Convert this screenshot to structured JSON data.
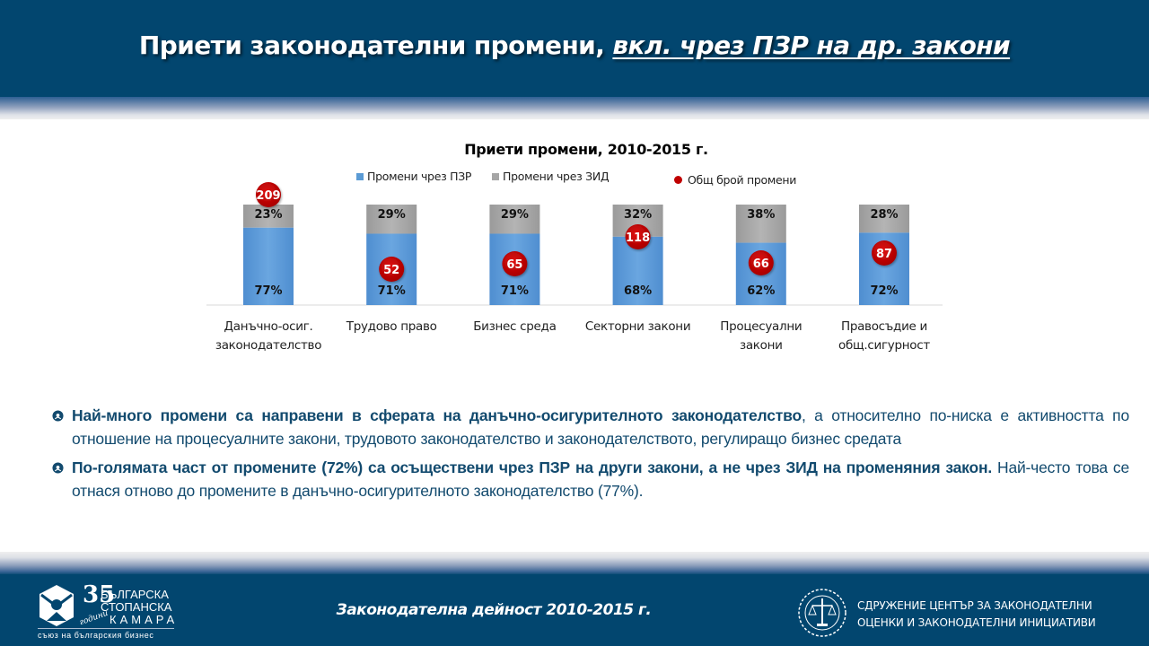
{
  "header": {
    "title_main": "Приети законодателни промени, ",
    "title_sub": "вкл. чрез ПЗР на др. закони"
  },
  "colors": {
    "navy": "#02466f",
    "pzr_blue": "#5b9bd5",
    "zid_gray": "#a6a6a6",
    "total_red": "#c00000",
    "bullet_text": "#124a6e"
  },
  "chart_data": {
    "type": "bar",
    "stacked": true,
    "percent_stacked": true,
    "title": "Приети промени, 2010-2015 г.",
    "xlabel": "",
    "ylabel": "",
    "ylim": [
      0,
      100
    ],
    "grid": false,
    "legend_position": "top",
    "categories": [
      [
        "Данъчно-осиг.",
        "законодателство"
      ],
      [
        "Трудово право"
      ],
      [
        "Бизнес среда"
      ],
      [
        "Секторни закони"
      ],
      [
        "Процесуални",
        "закони"
      ],
      [
        "Правосъдие и",
        "общ.сигурност"
      ]
    ],
    "series": [
      {
        "name": "Промени чрез ПЗР",
        "color": "#5b9bd5",
        "values": [
          77,
          71,
          71,
          68,
          62,
          72
        ],
        "labels": [
          "77%",
          "71%",
          "71%",
          "68%",
          "62%",
          "72%"
        ]
      },
      {
        "name": "Промени чрез ЗИД",
        "color": "#a6a6a6",
        "values": [
          23,
          29,
          29,
          32,
          38,
          28
        ],
        "labels": [
          "23%",
          "29%",
          "29%",
          "32%",
          "38%",
          "28%"
        ]
      },
      {
        "name": "Общ брой промени",
        "color": "#c00000",
        "marker": "circle",
        "values": [
          209,
          52,
          65,
          118,
          66,
          87
        ],
        "labels": [
          "209",
          "52",
          "65",
          "118",
          "66",
          "87"
        ]
      }
    ]
  },
  "bullets": [
    {
      "bold": "Най-много промени са направени в сферата на данъчно-осигурителното законодателство",
      "normal": ", а относително по-ниска е активността по отношение на процесуалните закони, трудовото законодателство и законодателството, регулиращо бизнес средата"
    },
    {
      "bold": "По-голямата част от промените (72%) са осъществени чрез ПЗР на други закони, а не чрез ЗИД на променяния закон.",
      "normal": " Най-често това се отнася отново до промените в данъчно-осигурителното законодателство (77%)."
    }
  ],
  "footer": {
    "center_text": "Законодателна дейност 2010-2015 г.",
    "left_logo": {
      "number": "35",
      "years_word": "години",
      "line1": "БЪЛГАРСКА",
      "line2": "СТОПАНСКА",
      "line3": "КАМАРА",
      "tagline": "съюз на българския бизнес"
    },
    "right_logo": {
      "line1": "СДРУЖЕНИЕ ЦЕНТЪР ЗА ЗАКОНОДАТЕЛНИ",
      "line2": "ОЦЕНКИ И ЗАКОНОДАТЕЛНИ ИНИЦИАТИВИ"
    }
  }
}
